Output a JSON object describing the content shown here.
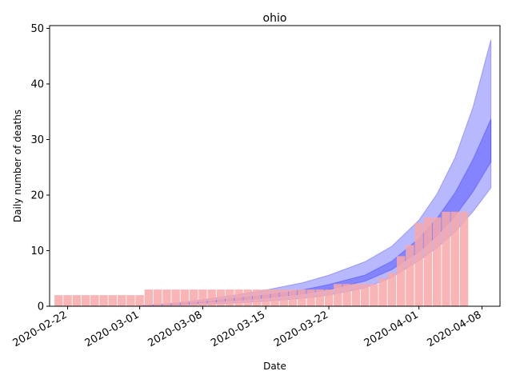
{
  "chart_data": {
    "type": "bar",
    "title": "ohio",
    "xlabel": "Date",
    "ylabel": "Daily number of deaths",
    "xlim": [
      "2020-02-20",
      "2020-04-10"
    ],
    "ylim": [
      0,
      50.5
    ],
    "yticks": [
      0,
      10,
      20,
      30,
      40,
      50
    ],
    "xticks": [
      "2020-02-22",
      "2020-03-01",
      "2020-03-08",
      "2020-03-15",
      "2020-03-22",
      "2020-04-01",
      "2020-04-08"
    ],
    "grid": false,
    "series": [
      {
        "kind": "bar",
        "color": "#f8a8a8",
        "x": [
          "2020-02-21",
          "2020-02-22",
          "2020-02-23",
          "2020-02-24",
          "2020-02-25",
          "2020-02-26",
          "2020-02-27",
          "2020-02-28",
          "2020-02-29",
          "2020-03-01",
          "2020-03-02",
          "2020-03-03",
          "2020-03-04",
          "2020-03-05",
          "2020-03-06",
          "2020-03-07",
          "2020-03-08",
          "2020-03-09",
          "2020-03-10",
          "2020-03-11",
          "2020-03-12",
          "2020-03-13",
          "2020-03-14",
          "2020-03-15",
          "2020-03-16",
          "2020-03-17",
          "2020-03-18",
          "2020-03-19",
          "2020-03-20",
          "2020-03-21",
          "2020-03-22",
          "2020-03-23",
          "2020-03-24",
          "2020-03-25",
          "2020-03-26",
          "2020-03-27",
          "2020-03-28",
          "2020-03-29",
          "2020-03-30",
          "2020-03-31",
          "2020-04-01",
          "2020-04-02",
          "2020-04-03",
          "2020-04-04",
          "2020-04-05",
          "2020-04-06"
        ],
        "values": [
          2,
          2,
          2,
          2,
          2,
          2,
          2,
          2,
          2,
          2,
          3,
          3,
          3,
          3,
          3,
          3,
          3,
          3,
          3,
          3,
          3,
          3,
          3,
          3,
          3,
          3,
          3,
          3,
          3,
          3,
          3,
          4,
          4,
          4,
          4,
          4,
          5,
          6,
          9,
          11,
          15,
          16,
          16,
          17,
          17,
          17
        ]
      },
      {
        "kind": "band",
        "color": "#0000ff",
        "opacity": 0.28,
        "x": [
          "2020-03-01",
          "2020-03-05",
          "2020-03-08",
          "2020-03-12",
          "2020-03-15",
          "2020-03-19",
          "2020-03-22",
          "2020-03-26",
          "2020-03-29",
          "2020-04-01",
          "2020-04-03",
          "2020-04-05",
          "2020-04-07",
          "2020-04-09"
        ],
        "lower": [
          0,
          0.1,
          0.3,
          0.6,
          0.9,
          1.4,
          2.0,
          3.3,
          5.2,
          8.2,
          10.5,
          13.4,
          17.0,
          21.3
        ],
        "upper": [
          0.1,
          0.6,
          1.2,
          2.1,
          2.9,
          4.2,
          5.6,
          8.0,
          10.8,
          15.5,
          20.2,
          26.7,
          35.8,
          48.0
        ]
      },
      {
        "kind": "band",
        "color": "#0000ff",
        "opacity": 0.28,
        "x": [
          "2020-03-01",
          "2020-03-05",
          "2020-03-08",
          "2020-03-12",
          "2020-03-15",
          "2020-03-19",
          "2020-03-22",
          "2020-03-26",
          "2020-03-29",
          "2020-04-01",
          "2020-04-03",
          "2020-04-05",
          "2020-04-07",
          "2020-04-09"
        ],
        "lower": [
          0,
          0.3,
          0.6,
          1.1,
          1.5,
          2.2,
          3.0,
          4.5,
          6.6,
          9.8,
          12.7,
          16.2,
          20.6,
          26.0
        ],
        "upper": [
          0,
          0.4,
          0.8,
          1.5,
          2.0,
          2.9,
          3.9,
          5.6,
          8.1,
          12.2,
          15.8,
          20.4,
          26.4,
          33.7
        ]
      }
    ]
  }
}
